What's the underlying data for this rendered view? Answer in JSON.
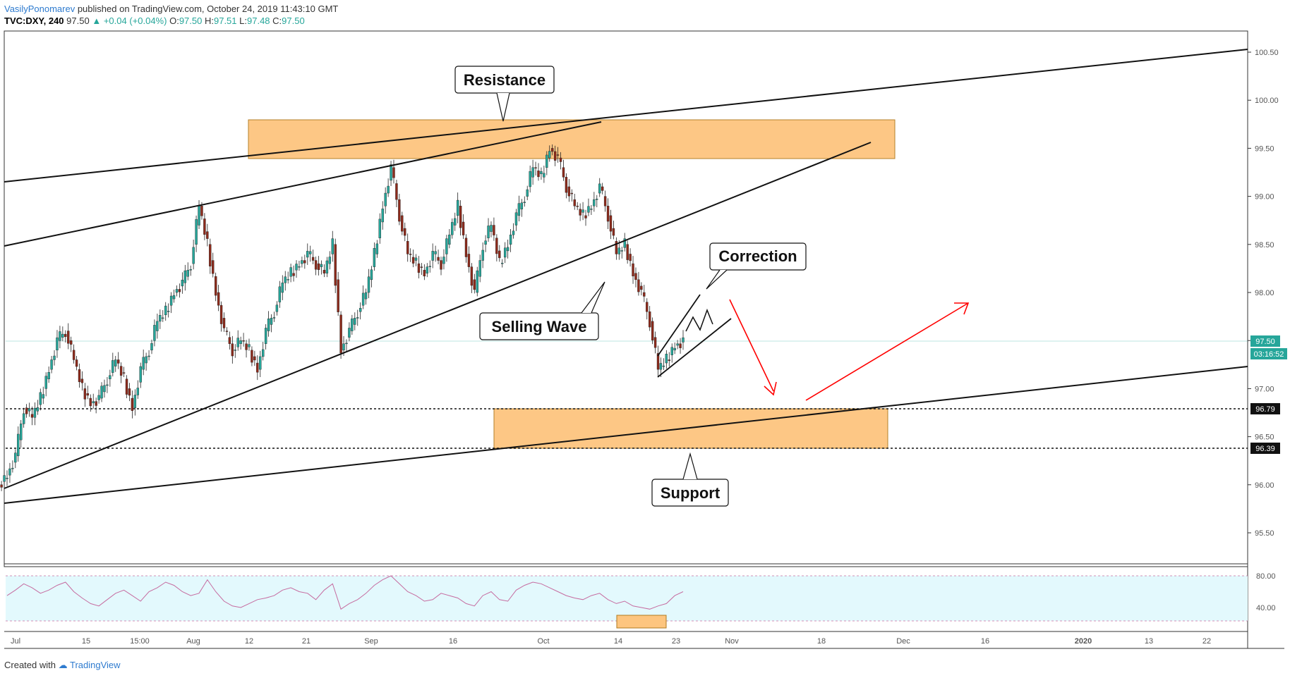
{
  "header": {
    "author": "VasilyPonomarev",
    "published": "published on TradingView.com, October 24, 2019 11:43:10 GMT",
    "symbol": "TVC:DXY, 240",
    "last": "97.50",
    "change": "▲ +0.04 (+0.04%)",
    "o_label": "O:",
    "o": "97.50",
    "h_label": "H:",
    "h": "97.51",
    "l_label": "L:",
    "l": "97.48",
    "c_label": "C:",
    "c": "97.50"
  },
  "footer": {
    "created": "Created with",
    "brand": "TradingView"
  },
  "chart_data": {
    "type": "candlestick",
    "price_ticks": [
      "100.50",
      "100.00",
      "99.50",
      "99.00",
      "98.50",
      "98.00",
      "97.50",
      "97.00",
      "96.50",
      "96.00",
      "95.50"
    ],
    "price_range": [
      95.25,
      100.75
    ],
    "current_price": "97.50",
    "countdown": "03:16:52",
    "support_levels": [
      "96.79",
      "96.39"
    ],
    "rsi_ticks": [
      "80.00",
      "40.00"
    ],
    "rsi_range": [
      25,
      90
    ],
    "x_ticks": [
      "Jul",
      "15",
      "15:00",
      "Aug",
      "12",
      "21",
      "Sep",
      "16",
      "Oct",
      "14",
      "23",
      "Nov",
      "18",
      "Dec",
      "16",
      "2020",
      "13",
      "22"
    ],
    "close_series": [
      96.1,
      96.3,
      96.8,
      96.7,
      96.9,
      97.2,
      97.5,
      97.6,
      97.3,
      97.0,
      96.85,
      96.9,
      97.1,
      97.3,
      97.1,
      96.8,
      97.2,
      97.4,
      97.7,
      97.8,
      98.0,
      98.1,
      98.3,
      98.9,
      98.5,
      98.0,
      97.6,
      97.4,
      97.5,
      97.4,
      97.2,
      97.6,
      97.8,
      98.1,
      98.2,
      98.3,
      98.4,
      98.3,
      98.2,
      98.5,
      97.4,
      97.6,
      97.8,
      98.0,
      98.4,
      98.9,
      99.3,
      98.8,
      98.4,
      98.3,
      98.2,
      98.4,
      98.3,
      98.6,
      98.9,
      98.4,
      98.0,
      98.5,
      98.7,
      98.3,
      98.5,
      98.8,
      99.0,
      99.3,
      99.2,
      99.5,
      99.4,
      99.1,
      98.9,
      98.8,
      98.9,
      99.1,
      98.8,
      98.4,
      98.5,
      98.2,
      98.0,
      97.7,
      97.2,
      97.3,
      97.45,
      97.5
    ],
    "rsi_series": [
      55,
      62,
      70,
      65,
      58,
      62,
      68,
      72,
      60,
      52,
      45,
      42,
      50,
      58,
      62,
      55,
      48,
      60,
      65,
      72,
      68,
      60,
      55,
      58,
      75,
      60,
      48,
      42,
      40,
      45,
      50,
      52,
      55,
      62,
      65,
      60,
      58,
      50,
      62,
      70,
      38,
      45,
      50,
      58,
      68,
      75,
      80,
      70,
      60,
      55,
      48,
      50,
      58,
      55,
      52,
      45,
      42,
      55,
      60,
      50,
      48,
      62,
      68,
      72,
      70,
      65,
      60,
      55,
      52,
      50,
      55,
      58,
      50,
      45,
      48,
      42,
      40,
      38,
      42,
      45,
      55,
      60
    ],
    "annotations": {
      "resistance": "Resistance",
      "correction": "Correction",
      "selling_wave": "Selling Wave",
      "support": "Support"
    },
    "colors": {
      "up": "#26a69a",
      "down": "#8d2a1b",
      "zone_fill": "#fdc57f",
      "zone_stroke": "#b07a1f",
      "rsi_line": "#c66ca0",
      "rsi_band": "#e3f9fd",
      "arrow_red": "#ff0000",
      "price_tag": "#26a69a"
    }
  }
}
